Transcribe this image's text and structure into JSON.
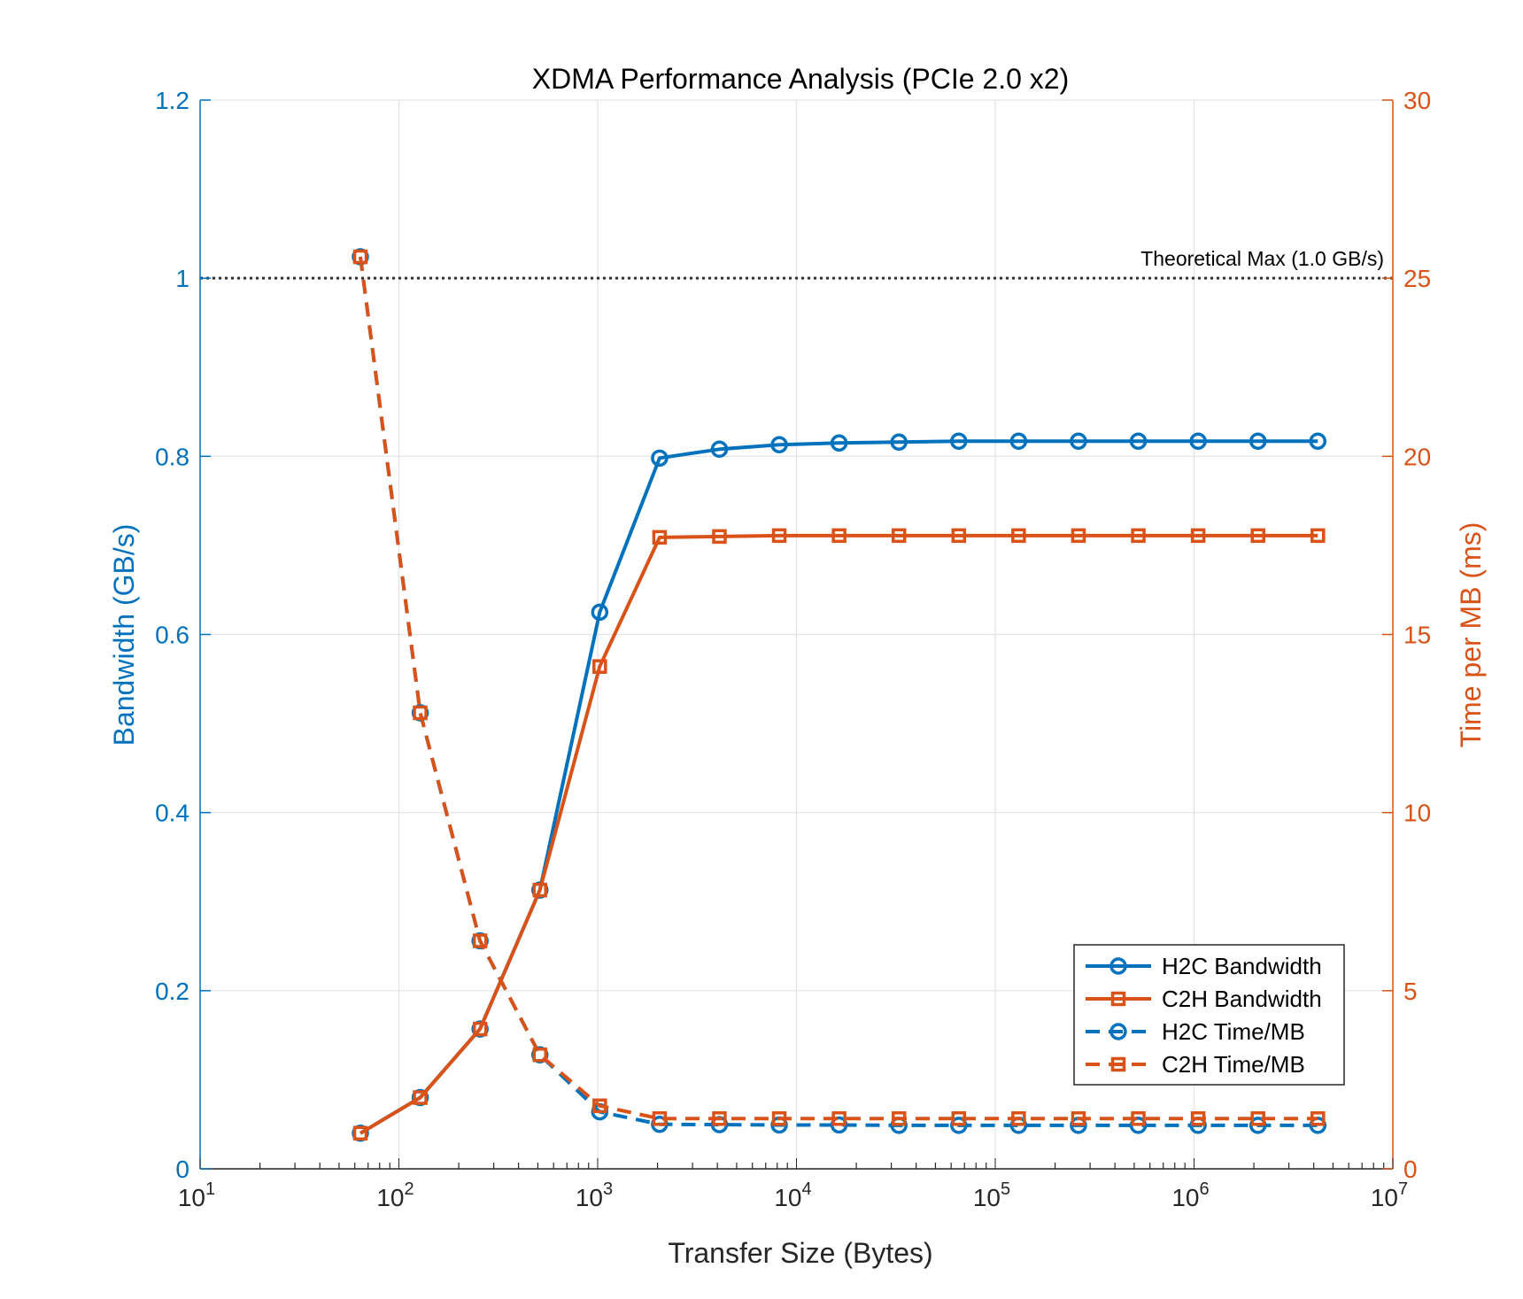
{
  "chart_data": {
    "type": "line",
    "title": "XDMA Performance Analysis (PCIe 2.0 x2)",
    "xlabel": "Transfer Size (Bytes)",
    "ylabel_left": "Bandwidth (GB/s)",
    "ylabel_right": "Time per MB (ms)",
    "xscale": "log",
    "xlim": [
      10,
      10000000
    ],
    "x_tick_bases": [
      "10",
      "10",
      "10",
      "10",
      "10",
      "10",
      "10"
    ],
    "x_tick_exponents": [
      "1",
      "2",
      "3",
      "4",
      "5",
      "6",
      "7"
    ],
    "ylim_left": [
      0,
      1.2
    ],
    "ylim_right": [
      0,
      30
    ],
    "y_ticks_left": [
      "0",
      "0.2",
      "0.4",
      "0.6",
      "0.8",
      "1",
      "1.2"
    ],
    "y_ticks_right": [
      "0",
      "5",
      "10",
      "15",
      "20",
      "25",
      "30"
    ],
    "grid": true,
    "legend_position": "bottom-right",
    "colors": {
      "h2c": "#0072BD",
      "c2h": "#D95319",
      "left_axis": "#0072BD",
      "right_axis": "#D95319",
      "reference": "#333333"
    },
    "annotation": {
      "label": "Theoretical Max (1.0 GB/s)",
      "y": 1.0,
      "axis": "left",
      "style": "dotted"
    },
    "x": [
      64,
      128,
      256,
      512,
      1024,
      2048,
      4096,
      8192,
      16384,
      32768,
      65536,
      131072,
      262144,
      524288,
      1048576,
      2097152,
      4194304
    ],
    "series": [
      {
        "name": "H2C Bandwidth",
        "axis": "left",
        "line": "solid",
        "marker": "circle",
        "color": "#0072BD",
        "values": [
          0.04,
          0.08,
          0.157,
          0.313,
          0.625,
          0.798,
          0.808,
          0.813,
          0.815,
          0.816,
          0.817,
          0.817,
          0.817,
          0.817,
          0.817,
          0.817,
          0.817
        ]
      },
      {
        "name": "C2H Bandwidth",
        "axis": "left",
        "line": "solid",
        "marker": "square",
        "color": "#D95319",
        "values": [
          0.04,
          0.08,
          0.157,
          0.313,
          0.564,
          0.709,
          0.71,
          0.711,
          0.711,
          0.711,
          0.711,
          0.711,
          0.711,
          0.711,
          0.711,
          0.711,
          0.711
        ]
      },
      {
        "name": "H2C Time/MB",
        "axis": "right",
        "line": "dashed",
        "marker": "circle",
        "color": "#0072BD",
        "values": [
          25.6,
          12.8,
          6.4,
          3.2,
          1.6,
          1.25,
          1.24,
          1.23,
          1.23,
          1.22,
          1.22,
          1.22,
          1.22,
          1.22,
          1.22,
          1.22,
          1.22
        ]
      },
      {
        "name": "C2H Time/MB",
        "axis": "right",
        "line": "dashed",
        "marker": "square",
        "color": "#D95319",
        "values": [
          25.6,
          12.8,
          6.4,
          3.2,
          1.77,
          1.41,
          1.41,
          1.41,
          1.41,
          1.41,
          1.41,
          1.41,
          1.41,
          1.41,
          1.41,
          1.41,
          1.41
        ]
      }
    ]
  }
}
